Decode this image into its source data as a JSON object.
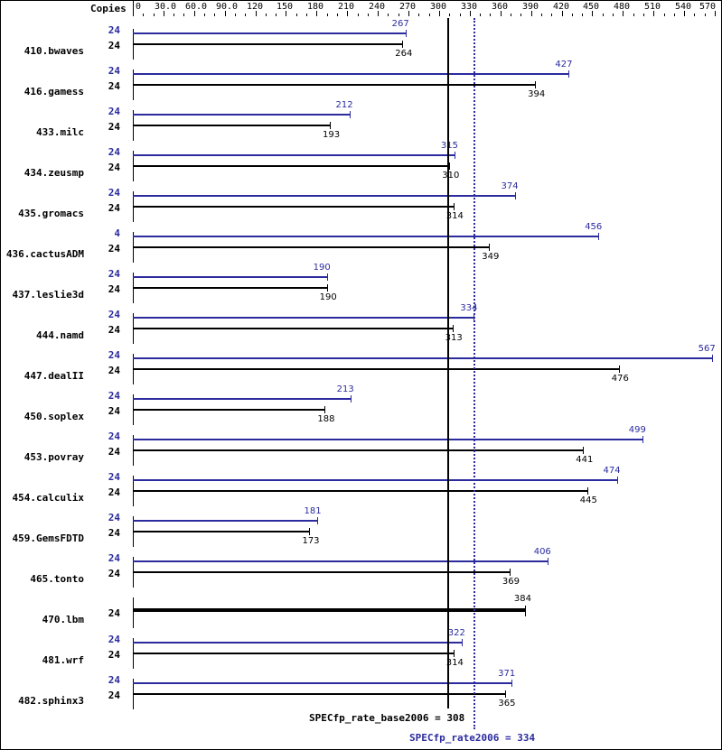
{
  "chart_data": {
    "type": "bar",
    "title": "",
    "xlabel": "",
    "ylabel": "",
    "axis_label": "Copies",
    "xlim": [
      0,
      570
    ],
    "tick_labels": [
      "0",
      "30.0",
      "60.0",
      "90.0",
      "120",
      "150",
      "180",
      "210",
      "240",
      "270",
      "300",
      "330",
      "360",
      "390",
      "420",
      "450",
      "480",
      "510",
      "540",
      "570"
    ],
    "tick_values": [
      0,
      30,
      60,
      90,
      120,
      150,
      180,
      210,
      240,
      270,
      300,
      330,
      360,
      390,
      420,
      450,
      480,
      510,
      540,
      570
    ],
    "legend": [
      "peak (blue)",
      "base (black)"
    ],
    "categories": [
      "410.bwaves",
      "416.gamess",
      "433.milc",
      "434.zeusmp",
      "435.gromacs",
      "436.cactusADM",
      "437.leslie3d",
      "444.namd",
      "447.dealII",
      "450.soplex",
      "453.povray",
      "454.calculix",
      "459.GemsFDTD",
      "465.tonto",
      "470.lbm",
      "481.wrf",
      "482.sphinx3"
    ],
    "series": [
      {
        "name": "peak",
        "color": "#2b2b9e",
        "copies": [
          "24",
          "24",
          "24",
          "24",
          "24",
          "4",
          "24",
          "24",
          "24",
          "24",
          "24",
          "24",
          "24",
          "24",
          null,
          "24",
          "24"
        ],
        "values": [
          267,
          427,
          212,
          315,
          374,
          456,
          190,
          334,
          567,
          213,
          499,
          474,
          181,
          406,
          null,
          322,
          371
        ]
      },
      {
        "name": "base",
        "color": "#000000",
        "copies": [
          "24",
          "24",
          "24",
          "24",
          "24",
          "24",
          "24",
          "24",
          "24",
          "24",
          "24",
          "24",
          "24",
          "24",
          "24",
          "24",
          "24"
        ],
        "values": [
          264,
          394,
          193,
          310,
          314,
          349,
          190,
          313,
          476,
          188,
          441,
          445,
          173,
          369,
          384,
          314,
          365
        ]
      }
    ],
    "summary": {
      "base_label": "SPECfp_rate_base2006 = 308",
      "base_value": 308,
      "peak_label": "SPECfp_rate2006 = 334",
      "peak_value": 334
    }
  }
}
